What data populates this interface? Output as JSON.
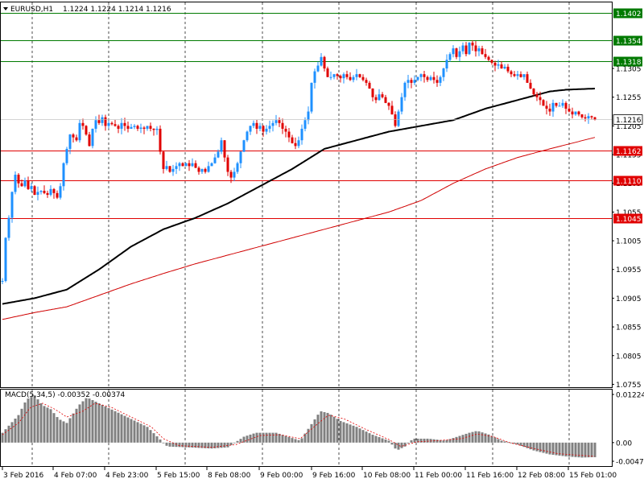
{
  "header": {
    "symbol_label": "EURUSD,H1",
    "ohlc": "1.1224 1.1224 1.1214 1.1216"
  },
  "macd": {
    "label": "MACD(5,34,5) -0.00352 -0.00374",
    "ticks": [
      "0.01224",
      "0.00",
      "-0.00474"
    ]
  },
  "chart_data": [
    {
      "type": "candlestick",
      "symbol": "EURUSD",
      "timeframe": "H1",
      "ylim": [
        1.075,
        1.142
      ],
      "y_ticks": [
        "1.1305",
        "1.1255",
        "1.1205",
        "1.1155",
        "1.1105",
        "1.1055",
        "1.1005",
        "1.0955",
        "1.0905",
        "1.0855",
        "1.0805",
        "1.0755"
      ],
      "x_ticks": [
        "3 Feb 2016",
        "4 Feb 07:00",
        "4 Feb 23:00",
        "5 Feb 15:00",
        "8 Feb 08:00",
        "9 Feb 00:00",
        "9 Feb 16:00",
        "10 Feb 08:00",
        "11 Feb 00:00",
        "11 Feb 16:00",
        "12 Feb 08:00",
        "15 Feb 01:00"
      ],
      "current_price": "1.1216",
      "levels": [
        {
          "label": "1.1402",
          "value": 1.1402,
          "color": "#007a00"
        },
        {
          "label": "1.1354",
          "value": 1.1354,
          "color": "#007a00"
        },
        {
          "label": "1.1318",
          "value": 1.1318,
          "color": "#007a00"
        },
        {
          "label": "1.1162",
          "value": 1.1162,
          "color": "#e00000"
        },
        {
          "label": "1.1110",
          "value": 1.111,
          "color": "#e00000"
        },
        {
          "label": "1.1045",
          "value": 1.1045,
          "color": "#e00000"
        }
      ],
      "close_path": [
        [
          0,
          1.0935
        ],
        [
          4,
          1.101
        ],
        [
          8,
          1.1045
        ],
        [
          12,
          1.109
        ],
        [
          16,
          1.112
        ],
        [
          20,
          1.1105
        ],
        [
          24,
          1.11
        ],
        [
          28,
          1.111
        ],
        [
          32,
          1.1095
        ],
        [
          36,
          1.11
        ],
        [
          40,
          1.1085
        ],
        [
          44,
          1.109
        ],
        [
          48,
          1.1092
        ],
        [
          52,
          1.1088
        ],
        [
          56,
          1.1085
        ],
        [
          60,
          1.1095
        ],
        [
          64,
          1.1088
        ],
        [
          68,
          1.108
        ],
        [
          72,
          1.11
        ],
        [
          76,
          1.114
        ],
        [
          80,
          1.1165
        ],
        [
          84,
          1.119
        ],
        [
          88,
          1.1185
        ],
        [
          92,
          1.118
        ],
        [
          96,
          1.121
        ],
        [
          100,
          1.1205
        ],
        [
          104,
          1.119
        ],
        [
          108,
          1.117
        ],
        [
          112,
          1.12
        ],
        [
          116,
          1.1215
        ],
        [
          120,
          1.121
        ],
        [
          124,
          1.122
        ],
        [
          128,
          1.1205
        ],
        [
          132,
          1.121
        ],
        [
          136,
          1.1208
        ],
        [
          140,
          1.1205
        ],
        [
          144,
          1.12
        ],
        [
          148,
          1.121
        ],
        [
          152,
          1.1205
        ],
        [
          156,
          1.12
        ],
        [
          160,
          1.1203
        ],
        [
          164,
          1.1205
        ],
        [
          168,
          1.12
        ],
        [
          172,
          1.1202
        ],
        [
          176,
          1.12
        ],
        [
          180,
          1.1205
        ],
        [
          184,
          1.12
        ],
        [
          188,
          1.1198
        ],
        [
          192,
          1.12
        ],
        [
          196,
          1.116
        ],
        [
          200,
          1.113
        ],
        [
          204,
          1.1135
        ],
        [
          208,
          1.1125
        ],
        [
          212,
          1.113
        ],
        [
          216,
          1.1135
        ],
        [
          220,
          1.114
        ],
        [
          224,
          1.1135
        ],
        [
          228,
          1.114
        ],
        [
          232,
          1.1135
        ],
        [
          236,
          1.114
        ],
        [
          240,
          1.1132
        ],
        [
          244,
          1.1125
        ],
        [
          248,
          1.113
        ],
        [
          252,
          1.1125
        ],
        [
          256,
          1.1135
        ],
        [
          260,
          1.114
        ],
        [
          264,
          1.115
        ],
        [
          268,
          1.116
        ],
        [
          272,
          1.118
        ],
        [
          276,
          1.115
        ],
        [
          280,
          1.1125
        ],
        [
          284,
          1.1115
        ],
        [
          288,
          1.1125
        ],
        [
          292,
          1.114
        ],
        [
          296,
          1.116
        ],
        [
          300,
          1.118
        ],
        [
          304,
          1.1195
        ],
        [
          308,
          1.1205
        ],
        [
          312,
          1.121
        ],
        [
          316,
          1.12
        ],
        [
          320,
          1.1205
        ],
        [
          324,
          1.1195
        ],
        [
          328,
          1.12
        ],
        [
          332,
          1.1205
        ],
        [
          336,
          1.121
        ],
        [
          340,
          1.1215
        ],
        [
          344,
          1.121
        ],
        [
          348,
          1.12
        ],
        [
          352,
          1.1195
        ],
        [
          356,
          1.1185
        ],
        [
          360,
          1.1175
        ],
        [
          364,
          1.117
        ],
        [
          368,
          1.118
        ],
        [
          372,
          1.12
        ],
        [
          376,
          1.1215
        ],
        [
          380,
          1.123
        ],
        [
          384,
          1.128
        ],
        [
          388,
          1.13
        ],
        [
          392,
          1.131
        ],
        [
          396,
          1.1325
        ],
        [
          400,
          1.1305
        ],
        [
          404,
          1.129
        ],
        [
          408,
          1.129
        ],
        [
          412,
          1.1295
        ],
        [
          416,
          1.1292
        ],
        [
          420,
          1.1288
        ],
        [
          424,
          1.1295
        ],
        [
          428,
          1.129
        ],
        [
          432,
          1.1285
        ],
        [
          436,
          1.129
        ],
        [
          440,
          1.1295
        ],
        [
          444,
          1.129
        ],
        [
          448,
          1.1285
        ],
        [
          452,
          1.128
        ],
        [
          456,
          1.127
        ],
        [
          460,
          1.1255
        ],
        [
          464,
          1.125
        ],
        [
          468,
          1.126
        ],
        [
          472,
          1.1255
        ],
        [
          476,
          1.1245
        ],
        [
          480,
          1.124
        ],
        [
          484,
          1.1225
        ],
        [
          488,
          1.1205
        ],
        [
          492,
          1.123
        ],
        [
          496,
          1.1255
        ],
        [
          500,
          1.128
        ],
        [
          504,
          1.1285
        ],
        [
          508,
          1.128
        ],
        [
          512,
          1.1285
        ],
        [
          516,
          1.129
        ],
        [
          520,
          1.1295
        ],
        [
          524,
          1.129
        ],
        [
          528,
          1.1285
        ],
        [
          532,
          1.129
        ],
        [
          536,
          1.1285
        ],
        [
          540,
          1.128
        ],
        [
          544,
          1.129
        ],
        [
          548,
          1.1305
        ],
        [
          552,
          1.132
        ],
        [
          556,
          1.133
        ],
        [
          560,
          1.134
        ],
        [
          564,
          1.1325
        ],
        [
          568,
          1.1335
        ],
        [
          572,
          1.1345
        ],
        [
          576,
          1.133
        ],
        [
          580,
          1.135
        ],
        [
          584,
          1.1345
        ],
        [
          588,
          1.1335
        ],
        [
          592,
          1.134
        ],
        [
          596,
          1.133
        ],
        [
          600,
          1.1325
        ],
        [
          604,
          1.132
        ],
        [
          608,
          1.1315
        ],
        [
          612,
          1.131
        ],
        [
          616,
          1.1312
        ],
        [
          620,
          1.1305
        ],
        [
          624,
          1.1308
        ],
        [
          628,
          1.13
        ],
        [
          632,
          1.1295
        ],
        [
          636,
          1.1292
        ],
        [
          640,
          1.1295
        ],
        [
          644,
          1.129
        ],
        [
          648,
          1.1295
        ],
        [
          652,
          1.128
        ],
        [
          656,
          1.127
        ],
        [
          660,
          1.126
        ],
        [
          664,
          1.1255
        ],
        [
          668,
          1.125
        ],
        [
          672,
          1.124
        ],
        [
          676,
          1.1235
        ],
        [
          680,
          1.123
        ],
        [
          684,
          1.1245
        ],
        [
          688,
          1.124
        ],
        [
          692,
          1.124
        ],
        [
          696,
          1.1245
        ],
        [
          700,
          1.1235
        ],
        [
          704,
          1.123
        ],
        [
          708,
          1.1225
        ],
        [
          712,
          1.123
        ],
        [
          716,
          1.1225
        ],
        [
          720,
          1.122
        ],
        [
          724,
          1.1218
        ],
        [
          728,
          1.1222
        ],
        [
          732,
          1.122
        ],
        [
          736,
          1.1216
        ]
      ],
      "ma_black": [
        [
          0,
          1.0895
        ],
        [
          40,
          1.0905
        ],
        [
          80,
          1.092
        ],
        [
          120,
          1.0955
        ],
        [
          160,
          1.0995
        ],
        [
          200,
          1.1025
        ],
        [
          240,
          1.1045
        ],
        [
          280,
          1.107
        ],
        [
          320,
          1.11
        ],
        [
          360,
          1.113
        ],
        [
          400,
          1.1165
        ],
        [
          440,
          1.118
        ],
        [
          480,
          1.1195
        ],
        [
          520,
          1.1205
        ],
        [
          560,
          1.1215
        ],
        [
          600,
          1.1235
        ],
        [
          640,
          1.125
        ],
        [
          680,
          1.1265
        ],
        [
          700,
          1.1268
        ],
        [
          736,
          1.127
        ]
      ],
      "ma_red": [
        [
          0,
          1.0868
        ],
        [
          40,
          1.088
        ],
        [
          80,
          1.089
        ],
        [
          120,
          1.091
        ],
        [
          160,
          1.093
        ],
        [
          200,
          1.0948
        ],
        [
          240,
          1.0965
        ],
        [
          280,
          1.098
        ],
        [
          320,
          1.0995
        ],
        [
          360,
          1.101
        ],
        [
          400,
          1.1025
        ],
        [
          440,
          1.104
        ],
        [
          480,
          1.1055
        ],
        [
          520,
          1.1075
        ],
        [
          560,
          1.1105
        ],
        [
          600,
          1.113
        ],
        [
          640,
          1.115
        ],
        [
          680,
          1.1165
        ],
        [
          736,
          1.1185
        ]
      ]
    },
    {
      "type": "bar",
      "name": "MACD(5,34,5)",
      "ylim": [
        -0.00474,
        0.01224
      ],
      "histogram": [
        [
          0,
          0.0025
        ],
        [
          20,
          0.007
        ],
        [
          30,
          0.011
        ],
        [
          40,
          0.012
        ],
        [
          50,
          0.0095
        ],
        [
          60,
          0.0085
        ],
        [
          70,
          0.006
        ],
        [
          80,
          0.005
        ],
        [
          95,
          0.0095
        ],
        [
          105,
          0.0115
        ],
        [
          120,
          0.01
        ],
        [
          140,
          0.008
        ],
        [
          160,
          0.006
        ],
        [
          180,
          0.004
        ],
        [
          195,
          0.001
        ],
        [
          205,
          -0.001
        ],
        [
          230,
          -0.0012
        ],
        [
          260,
          -0.0015
        ],
        [
          280,
          -0.0012
        ],
        [
          300,
          0.0015
        ],
        [
          315,
          0.0025
        ],
        [
          340,
          0.0025
        ],
        [
          355,
          0.0015
        ],
        [
          370,
          0.0005
        ],
        [
          385,
          0.005
        ],
        [
          395,
          0.008
        ],
        [
          405,
          0.0075
        ],
        [
          420,
          0.0055
        ],
        [
          440,
          0.004
        ],
        [
          460,
          0.002
        ],
        [
          480,
          0.0005
        ],
        [
          490,
          -0.002
        ],
        [
          500,
          -0.001
        ],
        [
          510,
          0.001
        ],
        [
          530,
          0.001
        ],
        [
          550,
          0.0005
        ],
        [
          565,
          0.0015
        ],
        [
          580,
          0.0025
        ],
        [
          590,
          0.003
        ],
        [
          605,
          0.002
        ],
        [
          620,
          0.0005
        ],
        [
          640,
          -0.0005
        ],
        [
          660,
          -0.002
        ],
        [
          680,
          -0.003
        ],
        [
          700,
          -0.0035
        ],
        [
          720,
          -0.0038
        ],
        [
          736,
          -0.0037
        ]
      ],
      "signal": [
        [
          0,
          0.002
        ],
        [
          20,
          0.005
        ],
        [
          35,
          0.009
        ],
        [
          50,
          0.01
        ],
        [
          65,
          0.0085
        ],
        [
          80,
          0.0065
        ],
        [
          100,
          0.008
        ],
        [
          115,
          0.01
        ],
        [
          135,
          0.009
        ],
        [
          160,
          0.0065
        ],
        [
          185,
          0.004
        ],
        [
          200,
          0.001
        ],
        [
          220,
          -0.0008
        ],
        [
          260,
          -0.0012
        ],
        [
          290,
          -0.0005
        ],
        [
          320,
          0.0018
        ],
        [
          345,
          0.002
        ],
        [
          370,
          0.001
        ],
        [
          390,
          0.0045
        ],
        [
          405,
          0.007
        ],
        [
          425,
          0.006
        ],
        [
          450,
          0.0035
        ],
        [
          480,
          0.0008
        ],
        [
          495,
          -0.001
        ],
        [
          515,
          0.0002
        ],
        [
          540,
          0.0005
        ],
        [
          570,
          0.001
        ],
        [
          590,
          0.0022
        ],
        [
          610,
          0.0015
        ],
        [
          630,
          0.0
        ],
        [
          660,
          -0.0015
        ],
        [
          690,
          -0.0028
        ],
        [
          736,
          -0.0035
        ]
      ]
    }
  ]
}
